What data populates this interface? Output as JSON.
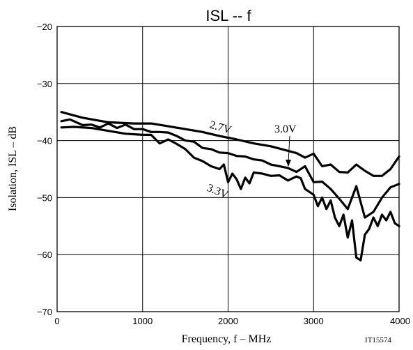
{
  "chart_data": {
    "type": "line",
    "title": "ISL  --  f",
    "xlabel": "Frequency, f  –  MHz",
    "ylabel": "Isolation, ISL  –  dB",
    "figure_code": "IT15574",
    "xlim": [
      0,
      4000
    ],
    "ylim": [
      -70,
      -20
    ],
    "xticks": [
      0,
      1000,
      2000,
      3000,
      4000
    ],
    "yticks": [
      -20,
      -30,
      -40,
      -50,
      -60,
      -70
    ],
    "xtick_labels": [
      "0",
      "1000",
      "2000",
      "3000",
      "4000"
    ],
    "ytick_labels": [
      "−20",
      "−30",
      "−40",
      "−50",
      "−60",
      "−70"
    ],
    "grid": true,
    "series": [
      {
        "name": "2.7V",
        "x": [
          50,
          300,
          600,
          900,
          1100,
          1300,
          1500,
          1700,
          1900,
          2100,
          2300,
          2500,
          2700,
          2800,
          2900,
          3000,
          3100,
          3200,
          3300,
          3400,
          3500,
          3600,
          3700,
          3800,
          3900,
          4000
        ],
        "y": [
          -35,
          -36,
          -36.8,
          -37,
          -37,
          -37.5,
          -38,
          -38.5,
          -39.2,
          -39.8,
          -40.5,
          -41,
          -41.8,
          -42.2,
          -43,
          -42.3,
          -44.5,
          -44.2,
          -45.5,
          -45.6,
          -44.2,
          -45.3,
          -46.2,
          -46.2,
          -45,
          -42.8
        ]
      },
      {
        "name": "3.0V",
        "x": [
          50,
          150,
          300,
          400,
          500,
          600,
          700,
          800,
          900,
          1000,
          1100,
          1200,
          1300,
          1400,
          1500,
          1600,
          1700,
          1800,
          1900,
          2000,
          2100,
          2200,
          2300,
          2400,
          2500,
          2600,
          2700,
          2800,
          2900,
          3000,
          3100,
          3200,
          3300,
          3400,
          3500,
          3600,
          3700,
          3800,
          3900,
          4000
        ],
        "y": [
          -36.6,
          -36.3,
          -37.3,
          -37.2,
          -37.7,
          -37,
          -37.8,
          -37.2,
          -38,
          -38,
          -38.5,
          -38.5,
          -38.6,
          -39.2,
          -40,
          -40.2,
          -41.3,
          -41.5,
          -42.1,
          -42.2,
          -42.7,
          -42.8,
          -43.3,
          -43.5,
          -44.2,
          -44.5,
          -44.8,
          -45.5,
          -44.5,
          -47.3,
          -47.2,
          -48.5,
          -50.2,
          -52,
          -48,
          -53.5,
          -52.5,
          -50,
          -48.2,
          -47.6
        ]
      },
      {
        "name": "3.3V",
        "x": [
          50,
          200,
          400,
          600,
          800,
          1000,
          1100,
          1200,
          1300,
          1400,
          1500,
          1600,
          1700,
          1800,
          1900,
          1950,
          2000,
          2050,
          2100,
          2150,
          2200,
          2250,
          2300,
          2400,
          2500,
          2600,
          2700,
          2800,
          2850,
          2900,
          3000,
          3050,
          3100,
          3150,
          3200,
          3250,
          3300,
          3350,
          3400,
          3450,
          3500,
          3550,
          3600,
          3650,
          3700,
          3750,
          3800,
          3850,
          3900,
          3950,
          4000
        ],
        "y": [
          -37.7,
          -37.6,
          -37.8,
          -38.3,
          -38.8,
          -39,
          -39,
          -40.5,
          -39.8,
          -40.6,
          -41.5,
          -43,
          -43.6,
          -44.5,
          -45,
          -44.2,
          -47.3,
          -45.8,
          -46.8,
          -48.5,
          -46.5,
          -47.5,
          -45.6,
          -45.8,
          -46.2,
          -46.1,
          -47,
          -46.3,
          -46.6,
          -48.5,
          -49.5,
          -51.5,
          -50,
          -52,
          -50.5,
          -53.5,
          -55,
          -53,
          -57,
          -54,
          -60.5,
          -61,
          -56.5,
          -55.5,
          -53.5,
          -55,
          -53,
          -54,
          -52.5,
          -54.5,
          -55
        ]
      }
    ],
    "annotations": [
      {
        "text": "2.7V",
        "series": "2.7V"
      },
      {
        "text": "3.0V",
        "series": "3.0V",
        "arrow": true
      },
      {
        "text": "3.3V",
        "series": "3.3V"
      }
    ]
  }
}
